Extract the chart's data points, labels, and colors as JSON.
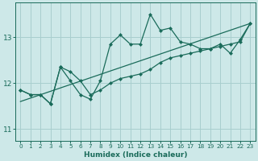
{
  "title": "",
  "xlabel": "Humidex (Indice chaleur)",
  "bg_color": "#cde8e8",
  "line_color": "#1a6b5a",
  "grid_color": "#a8cece",
  "xlim": [
    -0.5,
    23.5
  ],
  "ylim": [
    10.75,
    13.75
  ],
  "yticks": [
    11,
    12,
    13
  ],
  "xticks": [
    0,
    1,
    2,
    3,
    4,
    5,
    6,
    7,
    8,
    9,
    10,
    11,
    12,
    13,
    14,
    15,
    16,
    17,
    18,
    19,
    20,
    21,
    22,
    23
  ],
  "series1_y": [
    11.85,
    11.75,
    11.75,
    11.55,
    12.35,
    12.05,
    11.75,
    11.65,
    12.05,
    12.85,
    13.05,
    12.85,
    12.85,
    13.5,
    13.15,
    13.2,
    12.9,
    12.85,
    12.75,
    12.75,
    12.85,
    12.65,
    12.95,
    13.3
  ],
  "series2_y": [
    11.85,
    11.75,
    11.75,
    11.55,
    12.35,
    12.25,
    12.05,
    11.75,
    11.85,
    12.0,
    12.1,
    12.15,
    12.2,
    12.3,
    12.45,
    12.55,
    12.6,
    12.65,
    12.7,
    12.75,
    12.8,
    12.85,
    12.9,
    13.3
  ],
  "trend_x": [
    0,
    23
  ],
  "trend_y": [
    11.6,
    13.3
  ],
  "marker_size": 2.5,
  "line_width": 0.9,
  "xlabel_fontsize": 6.5,
  "ytick_fontsize": 6.5,
  "xtick_fontsize": 5.2
}
